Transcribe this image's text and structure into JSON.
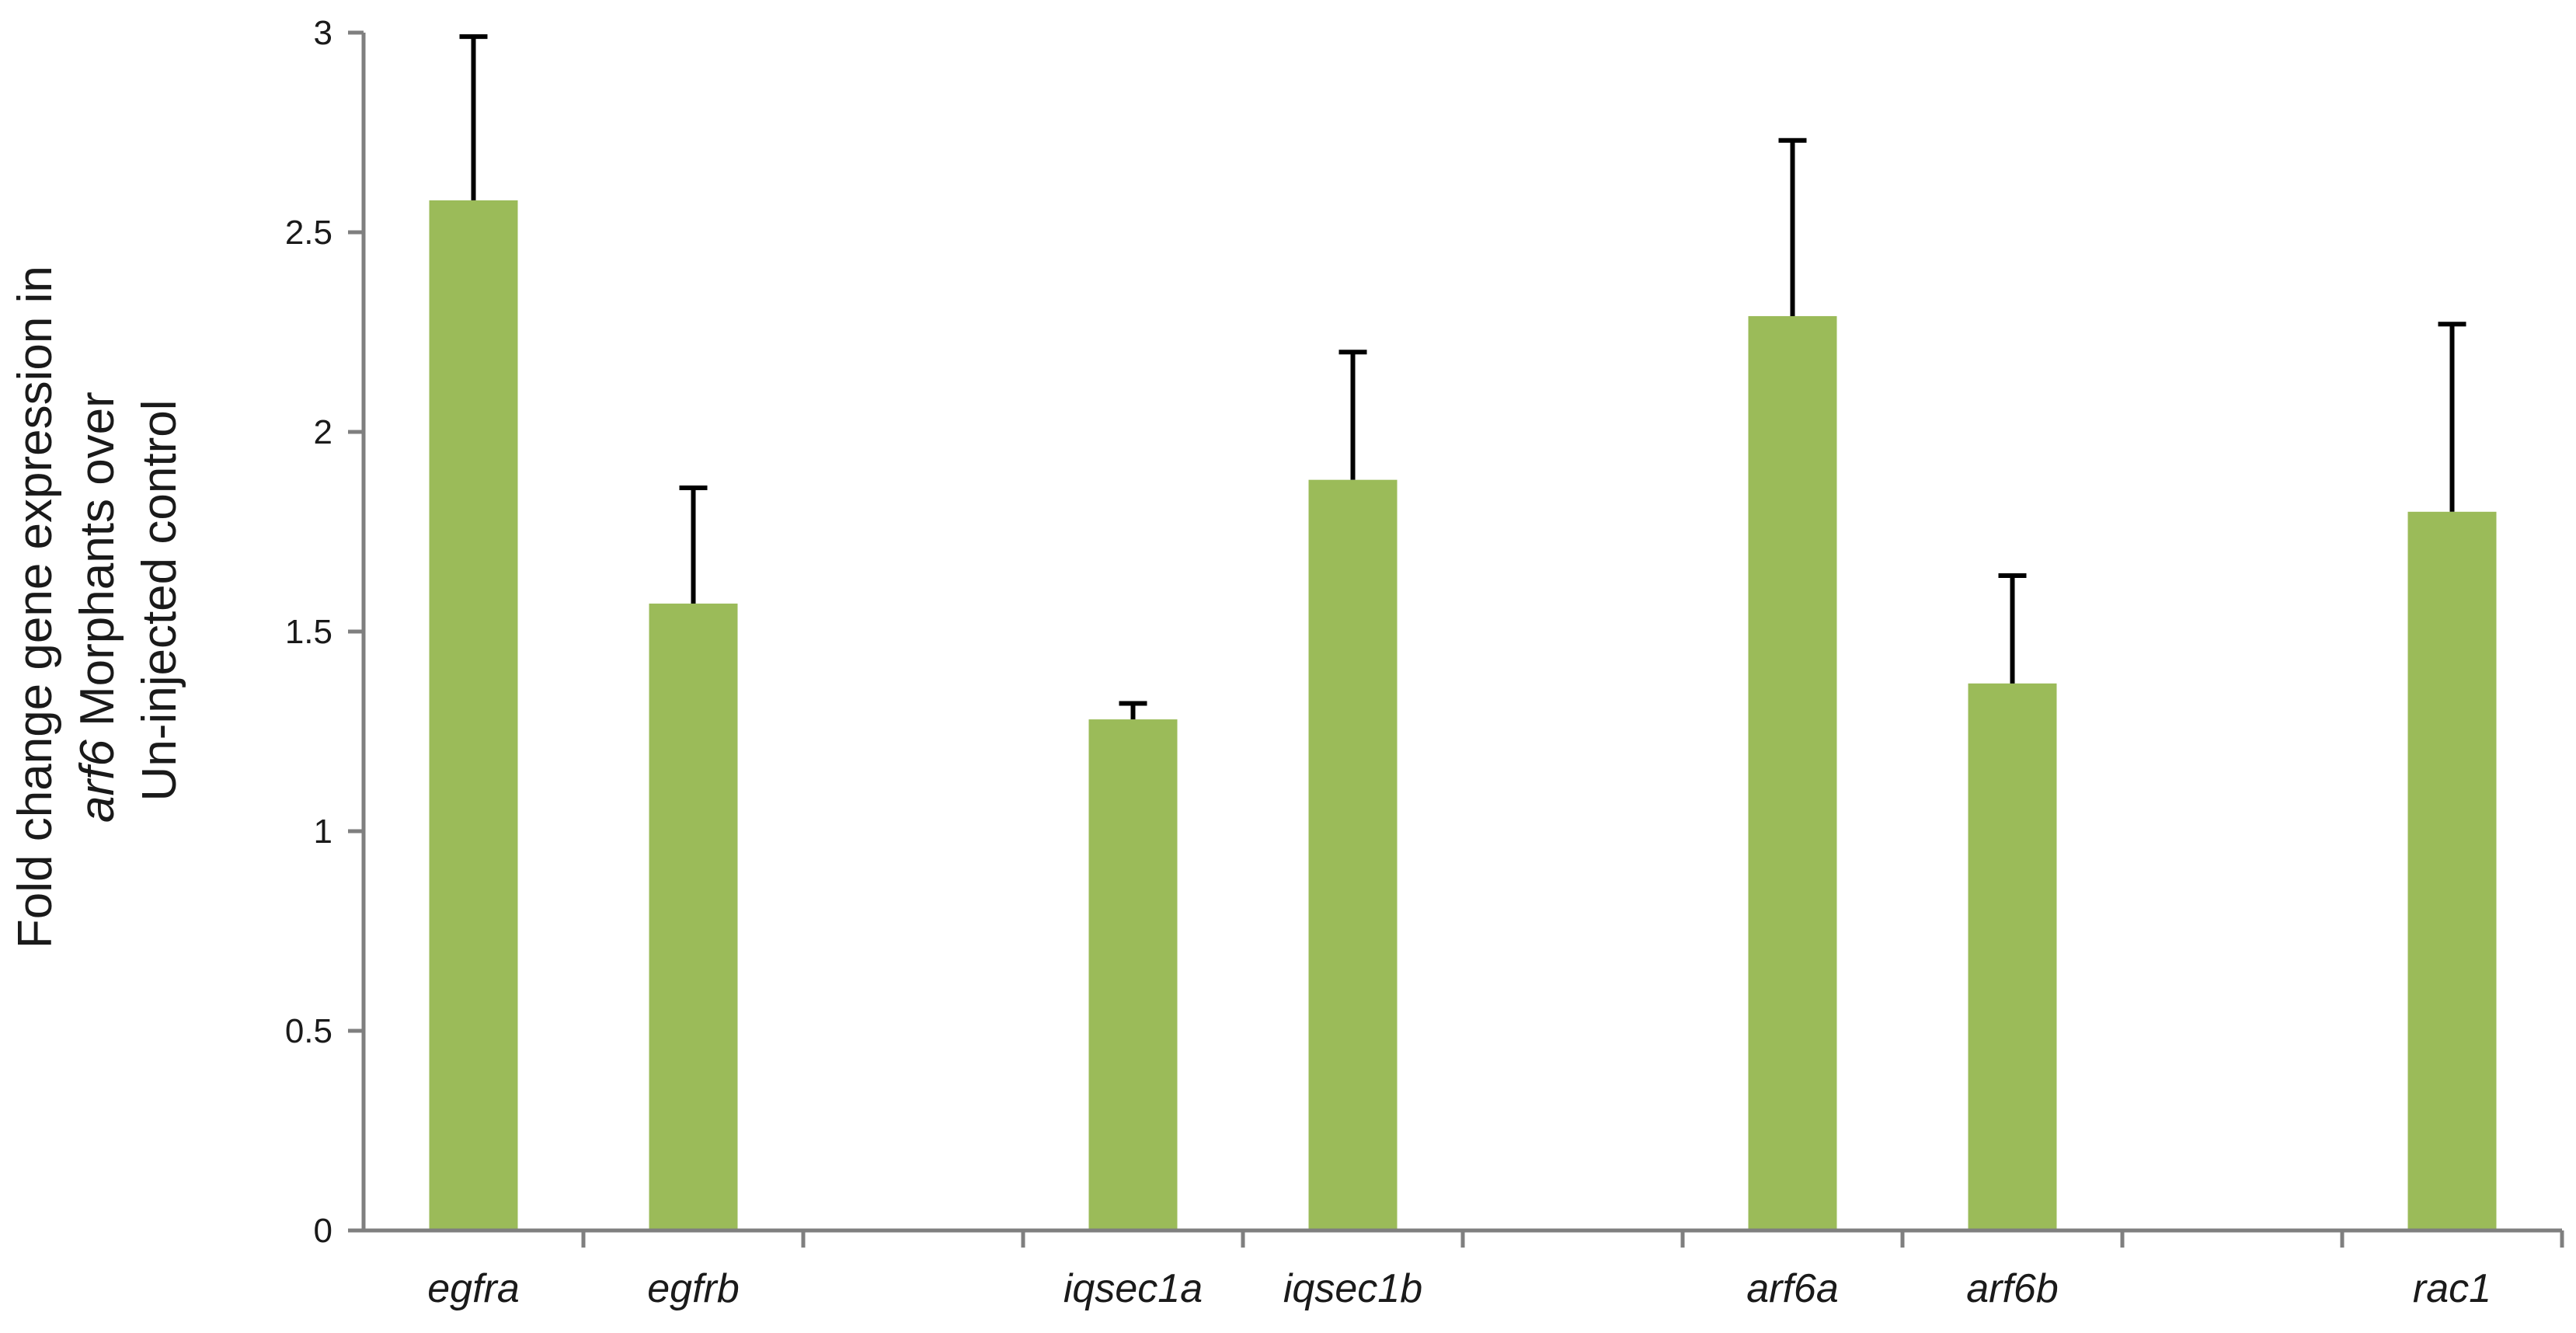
{
  "chart_data": {
    "type": "bar",
    "title": "",
    "xlabel": "",
    "ylabel": {
      "line1": "Fold change gene expression in",
      "line2_italic": "arf6",
      "line2_rest": " Morphants over",
      "line3": "Un-injected control"
    },
    "ylim": [
      0,
      3
    ],
    "yticks": [
      0,
      0.5,
      1,
      1.5,
      2,
      2.5,
      3
    ],
    "ytick_labels": [
      "0",
      "0.5",
      "1",
      "1.5",
      "2",
      "2.5",
      "3"
    ],
    "grid": false,
    "legend": "none",
    "slots": 10,
    "bar_color": "#9BBB59",
    "error_color": "#000000",
    "axis_color": "#7F7F7F",
    "categories": [
      {
        "label": "egfra",
        "slot": 0,
        "value": 2.58,
        "error": 0.41
      },
      {
        "label": "egfrb",
        "slot": 1,
        "value": 1.57,
        "error": 0.29
      },
      {
        "label": "iqsec1a",
        "slot": 3,
        "value": 1.28,
        "error": 0.04
      },
      {
        "label": "iqsec1b",
        "slot": 4,
        "value": 1.88,
        "error": 0.32
      },
      {
        "label": "arf6a",
        "slot": 6,
        "value": 2.29,
        "error": 0.44
      },
      {
        "label": "arf6b",
        "slot": 7,
        "value": 1.37,
        "error": 0.27
      },
      {
        "label": "rac1",
        "slot": 9,
        "value": 1.8,
        "error": 0.47
      }
    ]
  }
}
